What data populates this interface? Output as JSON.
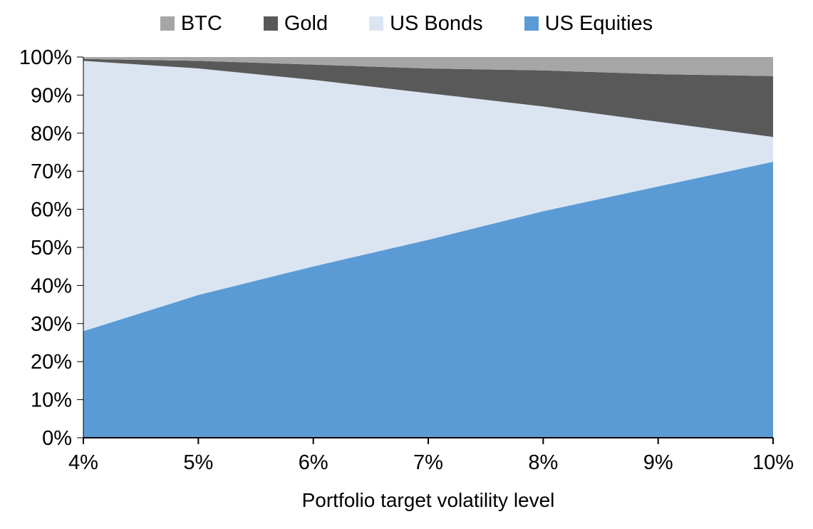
{
  "legend": {
    "items": [
      {
        "label": "BTC",
        "color": "#a6a6a6"
      },
      {
        "label": "Gold",
        "color": "#595959"
      },
      {
        "label": "US Bonds",
        "color": "#dbe5f2"
      },
      {
        "label": "US Equities",
        "color": "#5b9bd5"
      }
    ]
  },
  "chart_data": {
    "type": "area",
    "stacked": true,
    "title": "",
    "xlabel": "Portfolio target volatility level",
    "ylabel": "",
    "x": [
      4,
      5,
      6,
      7,
      8,
      9,
      10
    ],
    "x_tick_labels": [
      "4%",
      "5%",
      "6%",
      "7%",
      "8%",
      "9%",
      "10%"
    ],
    "y_ticks": [
      0,
      10,
      20,
      30,
      40,
      50,
      60,
      70,
      80,
      90,
      100
    ],
    "y_tick_labels": [
      "0%",
      "10%",
      "20%",
      "30%",
      "40%",
      "50%",
      "60%",
      "70%",
      "80%",
      "90%",
      "100%"
    ],
    "ylim": [
      0,
      100
    ],
    "grid": false,
    "legend_position": "top",
    "series": [
      {
        "name": "US Equities",
        "color": "#5b9bd5",
        "values": [
          28,
          37.5,
          45,
          52,
          59.5,
          66,
          72.5
        ]
      },
      {
        "name": "US Bonds",
        "color": "#dbe5f2",
        "values": [
          71,
          59.5,
          49,
          38.5,
          27.5,
          17,
          6.5
        ]
      },
      {
        "name": "Gold",
        "color": "#595959",
        "values": [
          0.5,
          2,
          4,
          6.5,
          9.5,
          12.5,
          16
        ]
      },
      {
        "name": "BTC",
        "color": "#a6a6a6",
        "values": [
          0.5,
          1,
          2,
          3,
          3.5,
          4.5,
          5
        ]
      }
    ]
  }
}
